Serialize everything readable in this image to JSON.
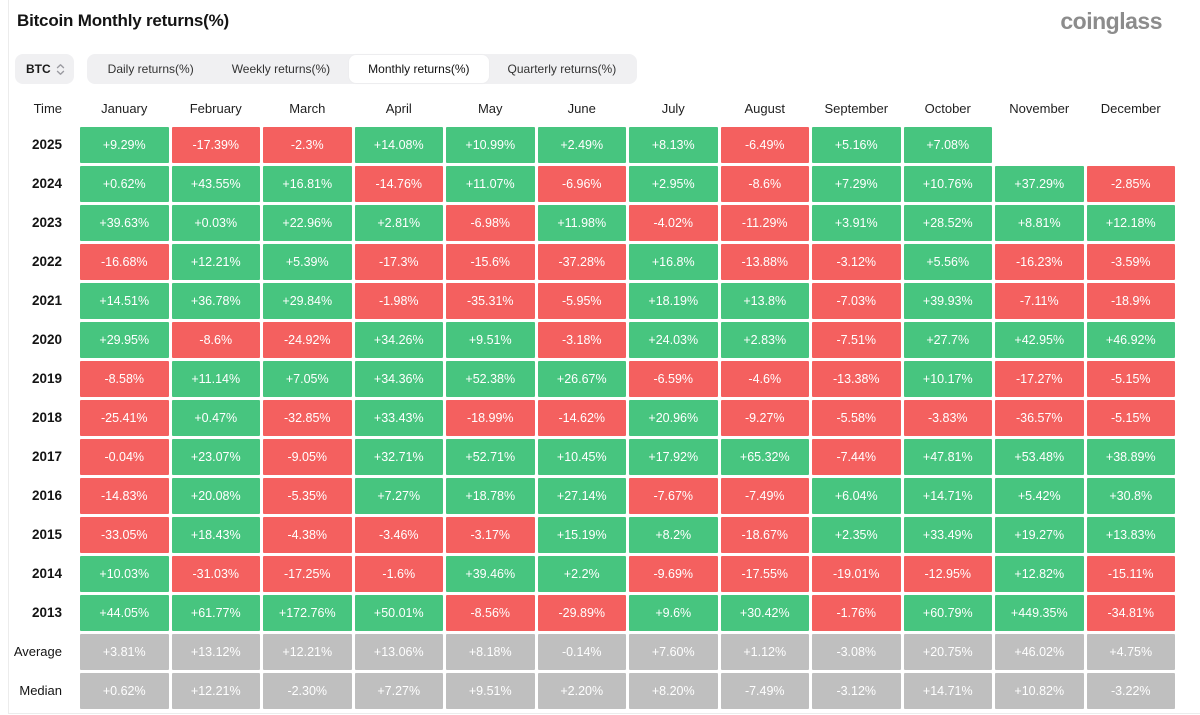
{
  "header": {
    "title": "Bitcoin Monthly returns(%)",
    "logo": "coinglass"
  },
  "controls": {
    "symbol_selector": {
      "label": "BTC",
      "icon": "updown-arrows-icon"
    },
    "tabs": [
      {
        "label": "Daily returns(%)",
        "active": false
      },
      {
        "label": "Weekly returns(%)",
        "active": false
      },
      {
        "label": "Monthly returns(%)",
        "active": true
      },
      {
        "label": "Quarterly returns(%)",
        "active": false
      }
    ]
  },
  "colors": {
    "positive": "#47C57F",
    "negative": "#F4605F",
    "neutral": "#BFBFBF",
    "tab_bar_bg": "#F0F0F2",
    "active_tab_bg": "#FFFFFF",
    "logo_gray": "#8C8C8C"
  },
  "table": {
    "columns": [
      "Time",
      "January",
      "February",
      "March",
      "April",
      "May",
      "June",
      "July",
      "August",
      "September",
      "October",
      "November",
      "December"
    ],
    "rows": [
      {
        "label": "2025",
        "type": "year",
        "values": [
          "+9.29%",
          "-17.39%",
          "-2.3%",
          "+14.08%",
          "+10.99%",
          "+2.49%",
          "+8.13%",
          "-6.49%",
          "+5.16%",
          "+7.08%",
          "",
          ""
        ]
      },
      {
        "label": "2024",
        "type": "year",
        "values": [
          "+0.62%",
          "+43.55%",
          "+16.81%",
          "-14.76%",
          "+11.07%",
          "-6.96%",
          "+2.95%",
          "-8.6%",
          "+7.29%",
          "+10.76%",
          "+37.29%",
          "-2.85%"
        ]
      },
      {
        "label": "2023",
        "type": "year",
        "values": [
          "+39.63%",
          "+0.03%",
          "+22.96%",
          "+2.81%",
          "-6.98%",
          "+11.98%",
          "-4.02%",
          "-11.29%",
          "+3.91%",
          "+28.52%",
          "+8.81%",
          "+12.18%"
        ]
      },
      {
        "label": "2022",
        "type": "year",
        "values": [
          "-16.68%",
          "+12.21%",
          "+5.39%",
          "-17.3%",
          "-15.6%",
          "-37.28%",
          "+16.8%",
          "-13.88%",
          "-3.12%",
          "+5.56%",
          "-16.23%",
          "-3.59%"
        ]
      },
      {
        "label": "2021",
        "type": "year",
        "values": [
          "+14.51%",
          "+36.78%",
          "+29.84%",
          "-1.98%",
          "-35.31%",
          "-5.95%",
          "+18.19%",
          "+13.8%",
          "-7.03%",
          "+39.93%",
          "-7.11%",
          "-18.9%"
        ]
      },
      {
        "label": "2020",
        "type": "year",
        "values": [
          "+29.95%",
          "-8.6%",
          "-24.92%",
          "+34.26%",
          "+9.51%",
          "-3.18%",
          "+24.03%",
          "+2.83%",
          "-7.51%",
          "+27.7%",
          "+42.95%",
          "+46.92%"
        ]
      },
      {
        "label": "2019",
        "type": "year",
        "values": [
          "-8.58%",
          "+11.14%",
          "+7.05%",
          "+34.36%",
          "+52.38%",
          "+26.67%",
          "-6.59%",
          "-4.6%",
          "-13.38%",
          "+10.17%",
          "-17.27%",
          "-5.15%"
        ]
      },
      {
        "label": "2018",
        "type": "year",
        "values": [
          "-25.41%",
          "+0.47%",
          "-32.85%",
          "+33.43%",
          "-18.99%",
          "-14.62%",
          "+20.96%",
          "-9.27%",
          "-5.58%",
          "-3.83%",
          "-36.57%",
          "-5.15%"
        ]
      },
      {
        "label": "2017",
        "type": "year",
        "values": [
          "-0.04%",
          "+23.07%",
          "-9.05%",
          "+32.71%",
          "+52.71%",
          "+10.45%",
          "+17.92%",
          "+65.32%",
          "-7.44%",
          "+47.81%",
          "+53.48%",
          "+38.89%"
        ]
      },
      {
        "label": "2016",
        "type": "year",
        "values": [
          "-14.83%",
          "+20.08%",
          "-5.35%",
          "+7.27%",
          "+18.78%",
          "+27.14%",
          "-7.67%",
          "-7.49%",
          "+6.04%",
          "+14.71%",
          "+5.42%",
          "+30.8%"
        ]
      },
      {
        "label": "2015",
        "type": "year",
        "values": [
          "-33.05%",
          "+18.43%",
          "-4.38%",
          "-3.46%",
          "-3.17%",
          "+15.19%",
          "+8.2%",
          "-18.67%",
          "+2.35%",
          "+33.49%",
          "+19.27%",
          "+13.83%"
        ]
      },
      {
        "label": "2014",
        "type": "year",
        "values": [
          "+10.03%",
          "-31.03%",
          "-17.25%",
          "-1.6%",
          "+39.46%",
          "+2.2%",
          "-9.69%",
          "-17.55%",
          "-19.01%",
          "-12.95%",
          "+12.82%",
          "-15.11%"
        ]
      },
      {
        "label": "2013",
        "type": "year",
        "values": [
          "+44.05%",
          "+61.77%",
          "+172.76%",
          "+50.01%",
          "-8.56%",
          "-29.89%",
          "+9.6%",
          "+30.42%",
          "-1.76%",
          "+60.79%",
          "+449.35%",
          "-34.81%"
        ]
      },
      {
        "label": "Average",
        "type": "summary",
        "values": [
          "+3.81%",
          "+13.12%",
          "+12.21%",
          "+13.06%",
          "+8.18%",
          "-0.14%",
          "+7.60%",
          "+1.12%",
          "-3.08%",
          "+20.75%",
          "+46.02%",
          "+4.75%"
        ]
      },
      {
        "label": "Median",
        "type": "summary",
        "values": [
          "+0.62%",
          "+12.21%",
          "-2.30%",
          "+7.27%",
          "+9.51%",
          "+2.20%",
          "+8.20%",
          "-7.49%",
          "-3.12%",
          "+14.71%",
          "+10.82%",
          "-3.22%"
        ]
      }
    ]
  }
}
